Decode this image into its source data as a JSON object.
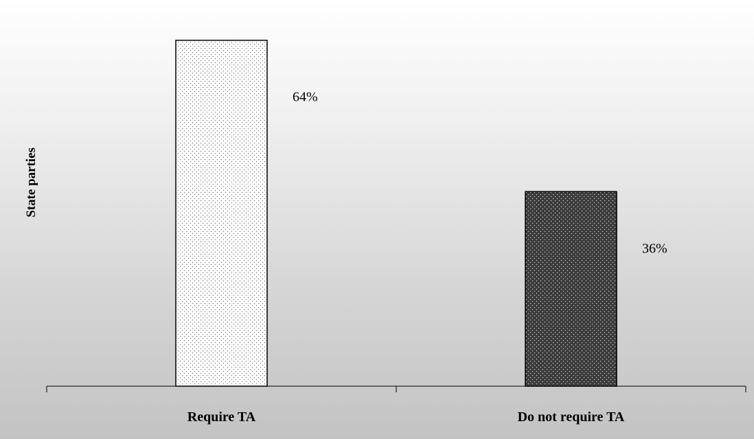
{
  "chart_data": {
    "type": "bar",
    "categories": [
      "Require TA",
      "Do not require TA"
    ],
    "values": [
      64,
      36
    ],
    "value_labels": [
      "64%",
      "36%"
    ],
    "title": "",
    "xlabel": "",
    "ylabel": "State parties",
    "ylim": [
      0,
      70
    ],
    "grid": false,
    "legend": "none",
    "bar_fills": [
      "light-dotted",
      "dark-dotted"
    ],
    "colors": {
      "light_bar_base": "#ffffff",
      "light_bar_dots": "#7a7a7a",
      "dark_bar_base": "#3a3a3a",
      "dark_bar_dots": "#cfcfcf",
      "axis": "#000000"
    }
  }
}
